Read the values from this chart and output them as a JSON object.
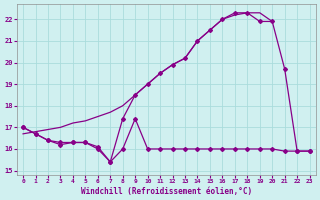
{
  "xlabel": "Windchill (Refroidissement éolien,°C)",
  "bg_color": "#d0f0f0",
  "grid_color": "#aadcdc",
  "line_color": "#880088",
  "xlim": [
    -0.5,
    23.5
  ],
  "ylim": [
    14.8,
    22.7
  ],
  "yticks": [
    15,
    16,
    17,
    18,
    19,
    20,
    21,
    22
  ],
  "xticks": [
    0,
    1,
    2,
    3,
    4,
    5,
    6,
    7,
    8,
    9,
    10,
    11,
    12,
    13,
    14,
    15,
    16,
    17,
    18,
    19,
    20,
    21,
    22,
    23
  ],
  "s1_x": [
    0,
    1,
    2,
    3,
    4,
    5,
    6,
    7,
    8,
    9,
    10,
    11,
    12,
    13,
    14,
    15,
    16,
    17,
    18,
    19,
    20,
    21,
    22,
    23
  ],
  "s1_y": [
    17.0,
    16.7,
    16.4,
    16.2,
    16.3,
    16.3,
    16.0,
    15.4,
    16.0,
    17.4,
    16.0,
    16.0,
    16.0,
    16.0,
    16.0,
    16.0,
    16.0,
    16.0,
    16.0,
    16.0,
    16.0,
    15.9,
    15.9,
    15.9
  ],
  "s2_x": [
    0,
    1,
    2,
    3,
    4,
    5,
    6,
    7,
    8,
    9,
    10,
    11,
    12,
    13,
    14,
    15,
    16,
    17,
    18,
    19,
    20,
    21,
    22,
    23
  ],
  "s2_y": [
    17.0,
    16.7,
    16.4,
    16.3,
    16.3,
    16.3,
    16.1,
    15.4,
    17.4,
    18.5,
    19.0,
    19.5,
    19.9,
    20.2,
    21.0,
    21.5,
    22.0,
    22.3,
    22.3,
    21.9,
    21.9,
    19.7,
    15.9,
    15.9
  ],
  "s3_x": [
    0,
    1,
    2,
    3,
    4,
    5,
    6,
    7,
    8,
    9,
    10,
    11,
    12,
    13,
    14,
    15,
    16,
    17,
    18,
    19,
    20
  ],
  "s3_y": [
    16.7,
    16.8,
    16.9,
    17.0,
    17.2,
    17.3,
    17.5,
    17.7,
    18.0,
    18.5,
    19.0,
    19.5,
    19.9,
    20.2,
    21.0,
    21.5,
    22.0,
    22.2,
    22.3,
    22.3,
    21.9
  ]
}
